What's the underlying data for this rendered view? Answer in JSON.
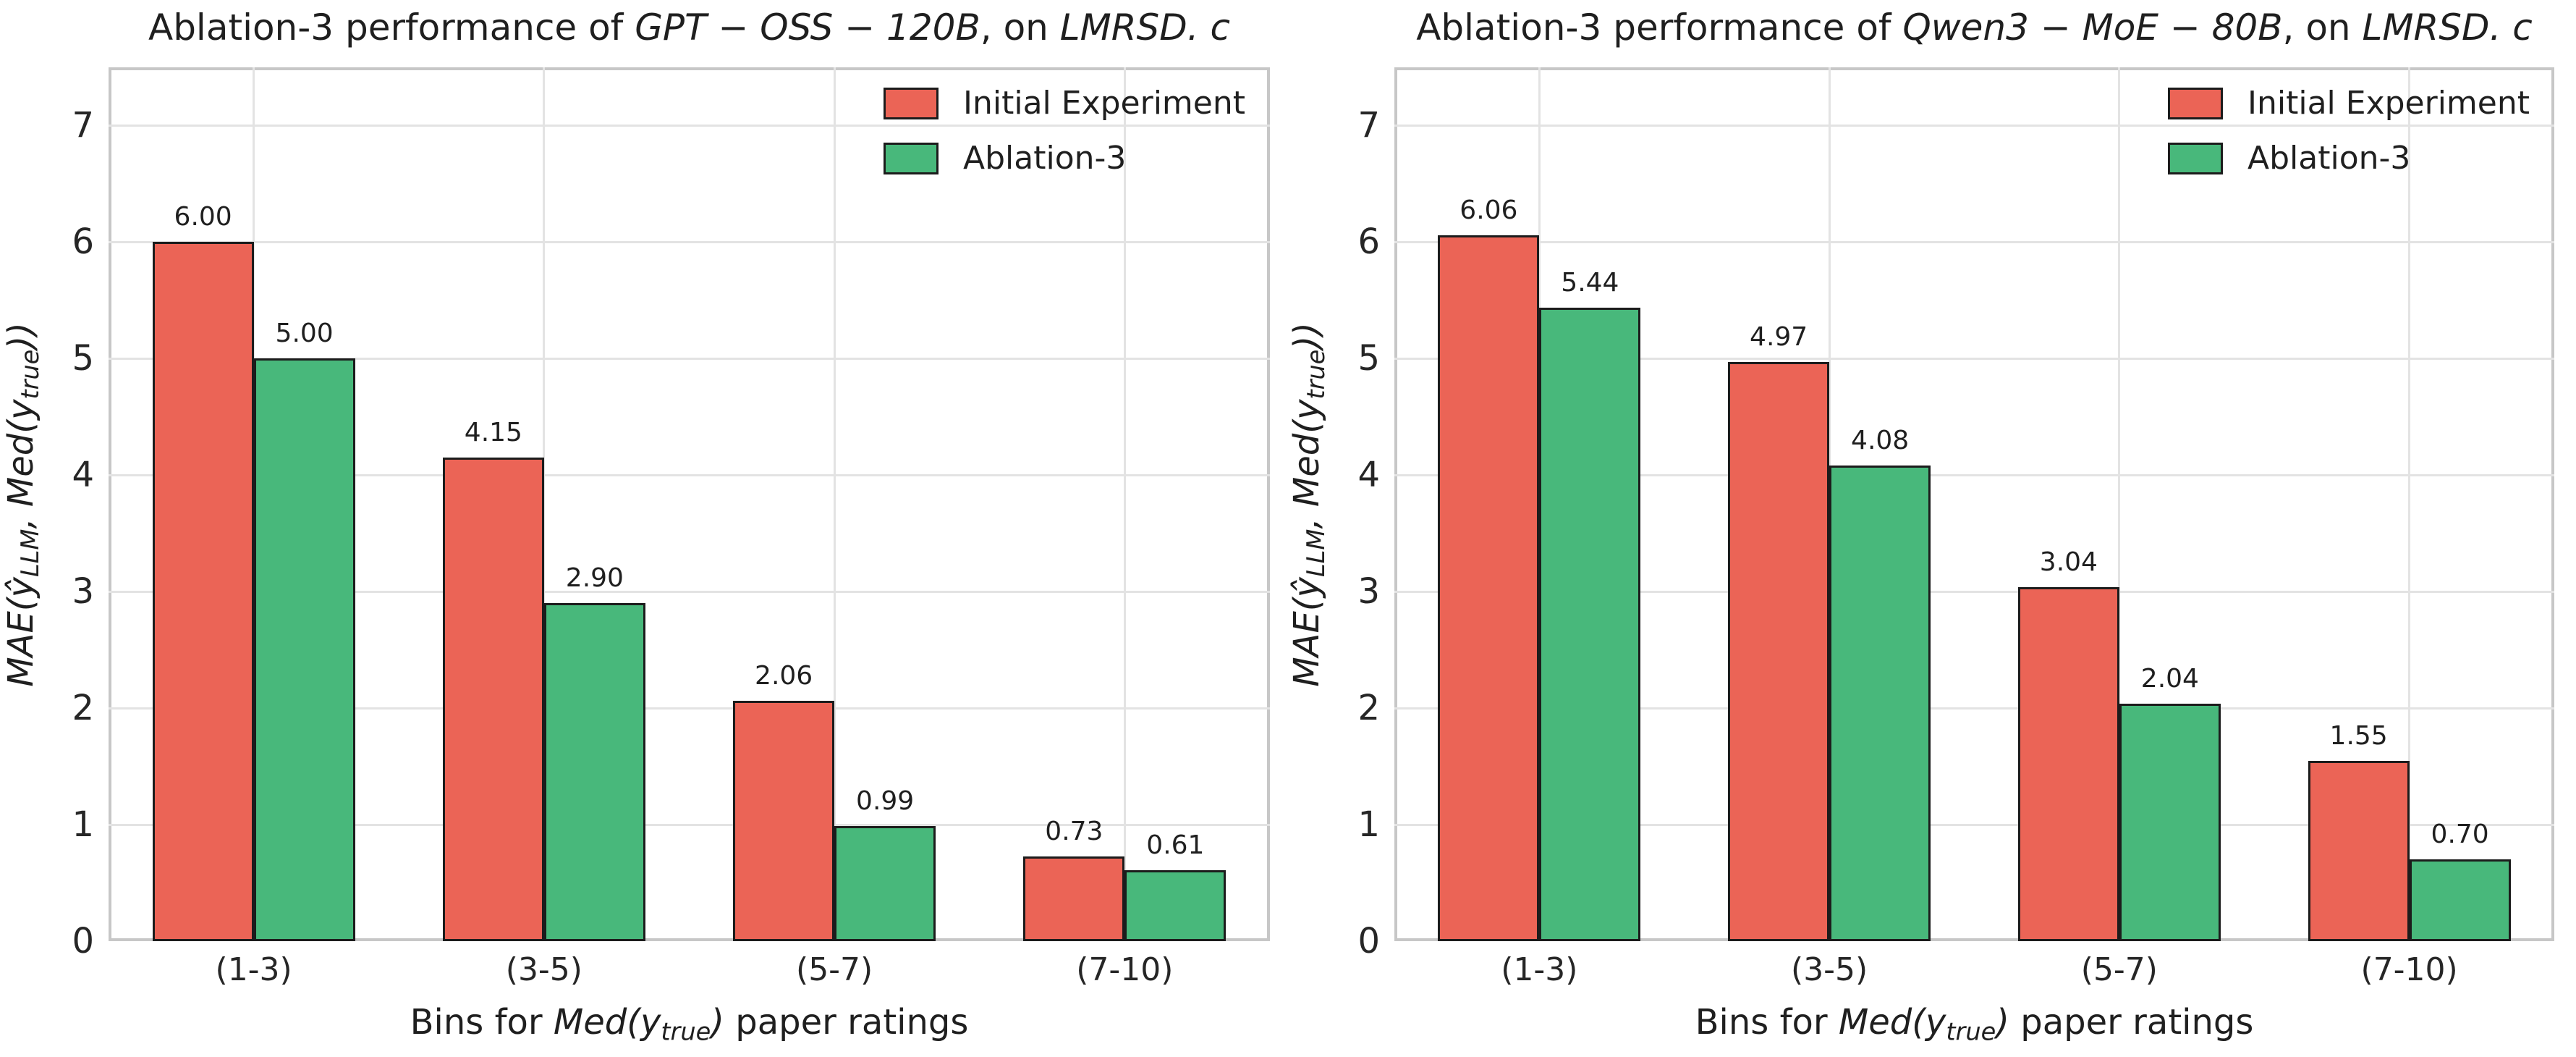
{
  "colors": {
    "initial": "#EB6456",
    "ablation": "#48B87B",
    "bar_edge": "#1c1c1c",
    "grid": "#e3e3e3",
    "spine": "#c7c7c7",
    "text": "#1f1f1f",
    "tick_text": "#262626",
    "background": "#ffffff"
  },
  "legend": {
    "items": [
      {
        "label": "Initial Experiment",
        "color_key": "initial"
      },
      {
        "label": "Ablation-3",
        "color_key": "ablation"
      }
    ]
  },
  "chart_data": [
    {
      "type": "bar",
      "title": "Ablation-3 performance of GPT − OSS − 120B, on LMRSD. c",
      "title_segments": [
        {
          "t": "Ablation-3 performance of "
        },
        {
          "t": "GPT − OSS − 120B",
          "math": true
        },
        {
          "t": ", on "
        },
        {
          "t": "LMRSD. c",
          "math": true
        }
      ],
      "categories": [
        "(1-3)",
        "(3-5)",
        "(5-7)",
        "(7-10)"
      ],
      "series": [
        {
          "name": "Initial Experiment",
          "color_key": "initial",
          "values": [
            6.0,
            4.15,
            2.06,
            0.73
          ]
        },
        {
          "name": "Ablation-3",
          "color_key": "ablation",
          "values": [
            5.0,
            2.9,
            0.99,
            0.61
          ]
        }
      ],
      "xlabel": "Bins for Med(y_true) paper ratings",
      "xlabel_segments": [
        {
          "t": "Bins for "
        },
        {
          "t": "Med(y",
          "math": true
        },
        {
          "t": "true",
          "math": true,
          "sub": true
        },
        {
          "t": ")",
          "math": true
        },
        {
          "t": " paper ratings"
        }
      ],
      "ylabel": "MAE(ŷ_LLM, Med(y_true))",
      "ylabel_segments": [
        {
          "t": "MAE(ŷ",
          "math": true
        },
        {
          "t": "LLM",
          "math": true,
          "sub": true
        },
        {
          "t": ", Med(y",
          "math": true
        },
        {
          "t": "true",
          "math": true,
          "sub": true
        },
        {
          "t": "))",
          "math": true
        }
      ],
      "yticks": [
        0,
        1,
        2,
        3,
        4,
        5,
        6,
        7
      ],
      "ylim": [
        0,
        7.5
      ],
      "grid": true,
      "legend_position": "upper right"
    },
    {
      "type": "bar",
      "title": "Ablation-3 performance of Qwen3 − MoE − 80B, on LMRSD. c",
      "title_segments": [
        {
          "t": "Ablation-3 performance of "
        },
        {
          "t": "Qwen3 − MoE − 80B",
          "math": true
        },
        {
          "t": ", on "
        },
        {
          "t": "LMRSD. c",
          "math": true
        }
      ],
      "categories": [
        "(1-3)",
        "(3-5)",
        "(5-7)",
        "(7-10)"
      ],
      "series": [
        {
          "name": "Initial Experiment",
          "color_key": "initial",
          "values": [
            6.06,
            4.97,
            3.04,
            1.55
          ]
        },
        {
          "name": "Ablation-3",
          "color_key": "ablation",
          "values": [
            5.44,
            4.08,
            2.04,
            0.7
          ]
        }
      ],
      "xlabel": "Bins for Med(y_true) paper ratings",
      "xlabel_segments": [
        {
          "t": "Bins for "
        },
        {
          "t": "Med(y",
          "math": true
        },
        {
          "t": "true",
          "math": true,
          "sub": true
        },
        {
          "t": ")",
          "math": true
        },
        {
          "t": " paper ratings"
        }
      ],
      "ylabel": "MAE(ŷ_LLM, Med(y_true))",
      "ylabel_segments": [
        {
          "t": "MAE(ŷ",
          "math": true
        },
        {
          "t": "LLM",
          "math": true,
          "sub": true
        },
        {
          "t": ", Med(y",
          "math": true
        },
        {
          "t": "true",
          "math": true,
          "sub": true
        },
        {
          "t": "))",
          "math": true
        }
      ],
      "yticks": [
        0,
        1,
        2,
        3,
        4,
        5,
        6,
        7
      ],
      "ylim": [
        0,
        7.5
      ],
      "grid": true,
      "legend_position": "upper right"
    }
  ]
}
